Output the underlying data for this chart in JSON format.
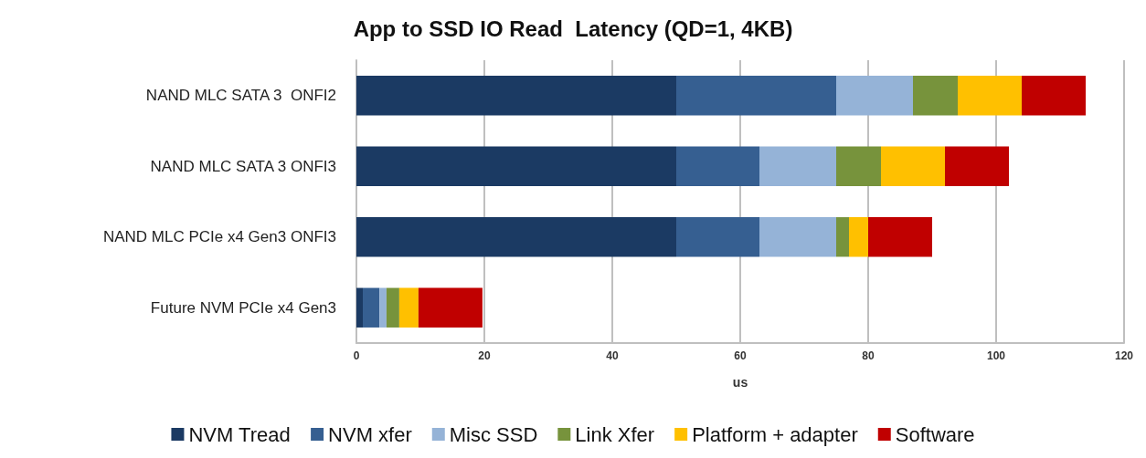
{
  "chart_data": {
    "type": "bar",
    "orientation": "horizontal",
    "stacked": true,
    "title": "App to SSD IO Read  Latency (QD=1, 4KB)",
    "xlabel": "us",
    "categories": [
      "NAND MLC SATA 3  ONFI2",
      "NAND MLC SATA 3 ONFI3",
      "NAND MLC PCIe x4 Gen3 ONFI3",
      "Future NVM PCIe x4 Gen3"
    ],
    "series": [
      {
        "name": "NVM Tread",
        "color": "#1b3a63",
        "values": [
          50,
          50,
          50,
          1
        ]
      },
      {
        "name": "NVM xfer",
        "color": "#365f91",
        "values": [
          25,
          13,
          13,
          2.6
        ]
      },
      {
        "name": "Misc SSD",
        "color": "#95b3d7",
        "values": [
          12,
          12,
          12,
          1.1
        ]
      },
      {
        "name": "Link Xfer",
        "color": "#77933c",
        "values": [
          7,
          7,
          2,
          2
        ]
      },
      {
        "name": "Platform + adapter",
        "color": "#ffc000",
        "values": [
          10,
          10,
          3,
          3
        ]
      },
      {
        "name": "Software",
        "color": "#c00000",
        "values": [
          10,
          10,
          10,
          10
        ]
      }
    ],
    "xlim": [
      0,
      120
    ],
    "xticks": [
      0,
      20,
      40,
      60,
      80,
      100,
      120
    ],
    "grid": "x",
    "legend": "bottom"
  }
}
